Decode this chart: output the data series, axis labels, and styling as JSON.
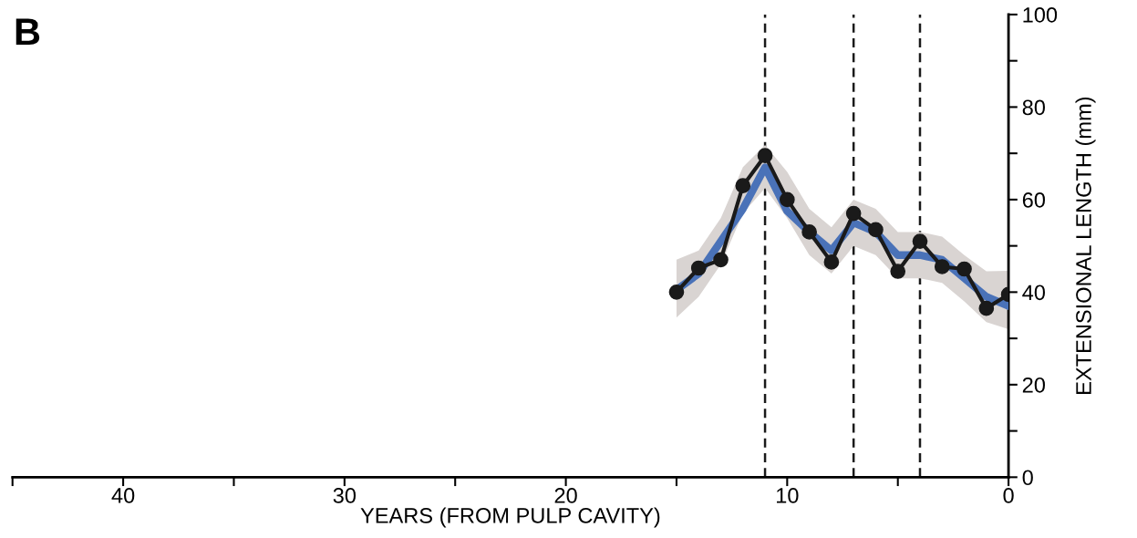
{
  "chart_data": {
    "type": "line",
    "xlabel": "YEARS (FROM PULP CAVITY)",
    "ylabel": "EXTENSIONAL LENGTH (mm)",
    "annotations": [
      "B"
    ],
    "xlim": [
      45,
      0
    ],
    "xticks": [
      {
        "value": 45,
        "label": null
      },
      40,
      {
        "value": 35,
        "label": null
      },
      30,
      {
        "value": 25,
        "label": null
      },
      20,
      {
        "value": 15,
        "label": null
      },
      10,
      {
        "value": 5,
        "label": null
      },
      0
    ],
    "ylim": [
      0,
      100
    ],
    "yticks": [
      0,
      {
        "value": 10,
        "label": null
      },
      20,
      {
        "value": 30,
        "label": null
      },
      40,
      {
        "value": 50,
        "label": null
      },
      60,
      {
        "value": 70,
        "label": null
      },
      80,
      {
        "value": 90,
        "label": null
      },
      100
    ],
    "grid": false,
    "legend": false,
    "series": [
      {
        "color": "#4a72b8",
        "marker": "none",
        "x": [
          15,
          14,
          13,
          12,
          11,
          10,
          9,
          8,
          7,
          6,
          5,
          4,
          3,
          2,
          1,
          0
        ],
        "values": [
          40.5,
          44,
          51,
          58,
          67,
          57.5,
          53,
          49,
          55,
          53,
          48,
          48,
          47,
          43,
          39,
          37
        ],
        "lower": [
          34.5,
          39,
          46,
          57,
          62.5,
          56,
          48,
          44,
          50,
          48,
          43,
          43,
          42,
          38,
          33.5,
          32
        ],
        "upper": [
          47,
          49,
          56,
          67,
          71.8,
          66,
          58,
          54,
          60,
          58,
          53,
          53,
          52,
          48,
          44.5,
          44.6
        ]
      },
      {
        "color": "#1a1a1a",
        "marker": "circle",
        "x": [
          15,
          14,
          13,
          12,
          11,
          10,
          9,
          8,
          7,
          6,
          5,
          4,
          3,
          2,
          1,
          0
        ],
        "values": [
          40,
          45.2,
          47,
          63,
          69.5,
          60,
          53,
          46.5,
          57,
          53.5,
          44.5,
          51,
          45.5,
          45,
          36.5,
          39.5
        ]
      }
    ],
    "ref_lines": [
      {
        "axis": "x",
        "value": 11,
        "color": "#1a1a1a",
        "line_style": "dashed"
      },
      {
        "axis": "x",
        "value": 7,
        "color": "#1a1a1a",
        "line_style": "dashed"
      },
      {
        "axis": "x",
        "value": 4,
        "color": "#1a1a1a",
        "line_style": "dashed"
      }
    ]
  }
}
